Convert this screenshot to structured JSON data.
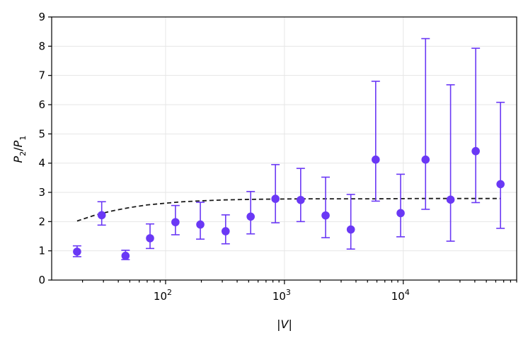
{
  "chart_data": {
    "type": "scatter",
    "xlabel": "|V|",
    "ylabel": "P2/P1",
    "xscale": "log",
    "xlim": [
      11,
      90000
    ],
    "ylim": [
      0,
      9
    ],
    "grid": true,
    "colors": {
      "points": "#6a38f5",
      "model": "#1a1a1a"
    },
    "y_ticks": [
      0,
      1,
      2,
      3,
      4,
      5,
      6,
      7,
      8,
      9
    ],
    "x_ticks": [
      {
        "value": 100,
        "base": "10",
        "exp": "2"
      },
      {
        "value": 1000,
        "base": "10",
        "exp": "3"
      },
      {
        "value": 10000,
        "base": "10",
        "exp": "4"
      }
    ],
    "points": [
      {
        "x": 18,
        "y": 0.97,
        "lo": 0.8,
        "hi": 1.17
      },
      {
        "x": 29,
        "y": 2.22,
        "lo": 1.88,
        "hi": 2.68
      },
      {
        "x": 46,
        "y": 0.83,
        "lo": 0.7,
        "hi": 1.02
      },
      {
        "x": 74,
        "y": 1.43,
        "lo": 1.08,
        "hi": 1.92
      },
      {
        "x": 121,
        "y": 1.98,
        "lo": 1.55,
        "hi": 2.55
      },
      {
        "x": 196,
        "y": 1.9,
        "lo": 1.4,
        "hi": 2.66
      },
      {
        "x": 320,
        "y": 1.67,
        "lo": 1.24,
        "hi": 2.23
      },
      {
        "x": 520,
        "y": 2.17,
        "lo": 1.58,
        "hi": 3.03
      },
      {
        "x": 840,
        "y": 2.78,
        "lo": 1.96,
        "hi": 3.95
      },
      {
        "x": 1370,
        "y": 2.74,
        "lo": 2.0,
        "hi": 3.82
      },
      {
        "x": 2220,
        "y": 2.21,
        "lo": 1.45,
        "hi": 3.52
      },
      {
        "x": 3620,
        "y": 1.73,
        "lo": 1.06,
        "hi": 2.93
      },
      {
        "x": 5860,
        "y": 4.12,
        "lo": 2.7,
        "hi": 6.8
      },
      {
        "x": 9500,
        "y": 2.29,
        "lo": 1.48,
        "hi": 3.62
      },
      {
        "x": 15400,
        "y": 4.12,
        "lo": 2.42,
        "hi": 8.26
      },
      {
        "x": 25000,
        "y": 2.75,
        "lo": 1.33,
        "hi": 6.68
      },
      {
        "x": 40700,
        "y": 4.41,
        "lo": 2.65,
        "hi": 7.93
      },
      {
        "x": 65800,
        "y": 3.28,
        "lo": 1.77,
        "hi": 6.08
      }
    ],
    "model_curve": {
      "x": [
        18,
        25,
        35,
        50,
        70,
        100,
        140,
        200,
        300,
        500,
        800,
        1500,
        3000,
        6000,
        15000,
        30000,
        65800
      ],
      "y": [
        2.02,
        2.21,
        2.36,
        2.48,
        2.57,
        2.63,
        2.68,
        2.71,
        2.74,
        2.76,
        2.77,
        2.78,
        2.78,
        2.78,
        2.79,
        2.79,
        2.79
      ]
    }
  }
}
